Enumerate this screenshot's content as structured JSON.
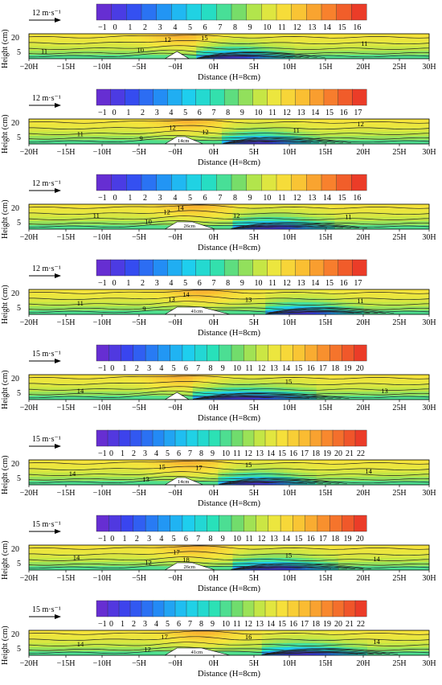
{
  "chart_data": [
    {
      "type": "heatmap",
      "panel": "a",
      "wind_speed_label": "12 m·s⁻¹",
      "colorbar_ticks": [
        "−1",
        "0",
        "1",
        "2",
        "3",
        "4",
        "5",
        "6",
        "7",
        "8",
        "9",
        "10",
        "11",
        "12",
        "13",
        "14",
        "15",
        "16"
      ],
      "scale_min": -1,
      "scale_max": 16,
      "x_ticks": [
        "−20H",
        "−15H",
        "−10H",
        "−5H",
        "−0H",
        "0H",
        "5H",
        "10H",
        "15H",
        "20H",
        "25H",
        "30H"
      ],
      "y_ticks": [
        "20",
        "5"
      ],
      "xlabel": "Distance (H=8cm)",
      "ylabel": "Height (cm)",
      "ridge_label": "",
      "gap_H": 0,
      "contour_labels": [
        {
          "text": "11",
          "x": -18.5,
          "y": 0.3
        },
        {
          "text": "10",
          "x": -6.5,
          "y": 0.35
        },
        {
          "text": "12",
          "x": -3.1,
          "y": 0.78
        },
        {
          "text": "15",
          "x": 1.5,
          "y": 0.84
        },
        {
          "text": "11",
          "x": 21.5,
          "y": 0.62
        }
      ],
      "isolines": [
        {
          "dir": "L",
          "H0": 9.5,
          "Hc": 7.5,
          "base": 0.85,
          "c": "#f8c534"
        },
        {
          "dir": "L",
          "H0": 9.5,
          "Hc": 7.5,
          "base": 0.55,
          "c": "#f0e044"
        },
        {
          "dir": "L",
          "H0": 9.5,
          "Hc": 7.5,
          "base": 0.32,
          "c": "#b7dc4a"
        },
        {
          "dir": "L",
          "H0": 9.5,
          "Hc": 7.5,
          "base": 0.12,
          "c": "#7fd06c"
        }
      ],
      "lee_blob": {
        "x0": 2.0,
        "x1": 9.0,
        "peak": 0.75
      }
    },
    {
      "type": "heatmap",
      "panel": "b",
      "wind_speed_label": "12 m·s⁻¹",
      "colorbar_ticks": [
        "−1",
        "0",
        "1",
        "2",
        "3",
        "4",
        "5",
        "6",
        "7",
        "8",
        "9",
        "10",
        "11",
        "12",
        "13",
        "14",
        "15",
        "16",
        "17"
      ],
      "scale_min": -1,
      "scale_max": 17,
      "x_ticks": [
        "−20H",
        "−15H",
        "−10H",
        "−5H",
        "−0H",
        "0H",
        "5H",
        "10H",
        "15H",
        "20H",
        "25H",
        "30H"
      ],
      "y_ticks": [
        "20",
        "5"
      ],
      "xlabel": "Distance (H=8cm)",
      "ylabel": "Height (cm)",
      "ridge_label": "14cm",
      "gap_H": 1.75,
      "contour_labels": [
        {
          "text": "11",
          "x": -14,
          "y": 0.4
        },
        {
          "text": "9",
          "x": -6.2,
          "y": 0.22
        },
        {
          "text": "12",
          "x": -2.5,
          "y": 0.66
        },
        {
          "text": "12",
          "x": 1.6,
          "y": 0.48
        },
        {
          "text": "11",
          "x": 13,
          "y": 0.55
        },
        {
          "text": "12",
          "x": 21,
          "y": 0.8
        }
      ],
      "isolines": [
        {
          "dir": "L",
          "H0": 9.5,
          "Hc": 7.5,
          "base": 0.85,
          "c": "#f8c534"
        },
        {
          "dir": "L",
          "H0": 9.5,
          "Hc": 7.5,
          "base": 0.55,
          "c": "#f0e044"
        },
        {
          "dir": "L",
          "H0": 9.5,
          "Hc": 7.5,
          "base": 0.32,
          "c": "#b7dc4a"
        },
        {
          "dir": "L",
          "H0": 9.5,
          "Hc": 7.5,
          "base": 0.12,
          "c": "#7fd06c"
        }
      ],
      "lee_blob": {
        "x0": 3.5,
        "x1": 10.5,
        "peak": 0.55
      }
    },
    {
      "type": "heatmap",
      "panel": "c",
      "wind_speed_label": "12 m·s⁻¹",
      "colorbar_ticks": [
        "−1",
        "0",
        "1",
        "2",
        "3",
        "4",
        "5",
        "6",
        "7",
        "8",
        "9",
        "10",
        "11",
        "12",
        "13",
        "14",
        "15",
        "16"
      ],
      "scale_min": -1,
      "scale_max": 16,
      "x_ticks": [
        "−20H",
        "−15H",
        "−10H",
        "−5H",
        "−0H",
        "0H",
        "5H",
        "10H",
        "15H",
        "20H",
        "25H",
        "30H"
      ],
      "y_ticks": [
        "20",
        "5"
      ],
      "xlabel": "Distance (H=8cm)",
      "ylabel": "Height (cm)",
      "ridge_label": "26cm",
      "gap_H": 3.25,
      "contour_labels": [
        {
          "text": "11",
          "x": -12,
          "y": 0.55
        },
        {
          "text": "10",
          "x": -5.5,
          "y": 0.3
        },
        {
          "text": "12",
          "x": -3.2,
          "y": 0.7
        },
        {
          "text": "14",
          "x": -1.5,
          "y": 0.86
        },
        {
          "text": "12",
          "x": 5.5,
          "y": 0.55
        },
        {
          "text": "11",
          "x": 19.5,
          "y": 0.5
        }
      ],
      "isolines": [
        {
          "dir": "L",
          "H0": 9.5,
          "Hc": 7.5,
          "base": 0.85,
          "c": "#f8c534"
        },
        {
          "dir": "L",
          "H0": 9.5,
          "Hc": 7.5,
          "base": 0.55,
          "c": "#f0e044"
        },
        {
          "dir": "L",
          "H0": 9.5,
          "Hc": 7.5,
          "base": 0.32,
          "c": "#b7dc4a"
        },
        {
          "dir": "L",
          "H0": 9.5,
          "Hc": 7.5,
          "base": 0.12,
          "c": "#7fd06c"
        }
      ],
      "lee_blob": {
        "x0": 3.0,
        "x1": 11.0,
        "peak": 0.8
      }
    },
    {
      "type": "heatmap",
      "panel": "d",
      "wind_speed_label": "12 m·s⁻¹",
      "colorbar_ticks": [
        "−1",
        "0",
        "1",
        "2",
        "3",
        "4",
        "5",
        "6",
        "7",
        "8",
        "9",
        "10",
        "11",
        "12",
        "13",
        "14",
        "15",
        "16",
        "17"
      ],
      "scale_min": -1,
      "scale_max": 17,
      "x_ticks": [
        "−20H",
        "−15H",
        "−10H",
        "−5H",
        "−0H",
        "0H",
        "5H",
        "10H",
        "15H",
        "20H",
        "25H",
        "30H"
      ],
      "y_ticks": [
        "20",
        "5"
      ],
      "xlabel": "Distance (H=8cm)",
      "ylabel": "Height (cm)",
      "ridge_label": "41cm",
      "gap_H": 5.1,
      "contour_labels": [
        {
          "text": "11",
          "x": -14,
          "y": 0.45
        },
        {
          "text": "9",
          "x": -5.8,
          "y": 0.22
        },
        {
          "text": "13",
          "x": -2.6,
          "y": 0.62
        },
        {
          "text": "14",
          "x": -0.8,
          "y": 0.8
        },
        {
          "text": "13",
          "x": 7,
          "y": 0.6
        },
        {
          "text": "11",
          "x": 21,
          "y": 0.55
        }
      ],
      "isolines": [
        {
          "dir": "L",
          "H0": 9.5,
          "Hc": 7.5,
          "base": 0.85,
          "c": "#f8c534"
        },
        {
          "dir": "L",
          "H0": 9.5,
          "Hc": 7.5,
          "base": 0.55,
          "c": "#f0e044"
        },
        {
          "dir": "L",
          "H0": 9.5,
          "Hc": 7.5,
          "base": 0.32,
          "c": "#b7dc4a"
        },
        {
          "dir": "L",
          "H0": 9.5,
          "Hc": 7.5,
          "base": 0.12,
          "c": "#7fd06c"
        }
      ],
      "lee_blob": {
        "x0": 5.5,
        "x1": 12.5,
        "peak": 0.55
      }
    },
    {
      "type": "heatmap",
      "panel": "e",
      "wind_speed_label": "15 m·s⁻¹",
      "colorbar_ticks": [
        "−1",
        "0",
        "1",
        "2",
        "3",
        "4",
        "5",
        "6",
        "7",
        "8",
        "9",
        "10",
        "11",
        "12",
        "13",
        "14",
        "15",
        "16",
        "17",
        "18",
        "19",
        "20"
      ],
      "scale_min": -1,
      "scale_max": 20,
      "x_ticks": [
        "−20H",
        "−15H",
        "−10H",
        "−5H",
        "−0H",
        "0H",
        "5H",
        "10H",
        "15H",
        "20H",
        "25H",
        "30H"
      ],
      "y_ticks": [
        "20",
        "5"
      ],
      "xlabel": "Distance (H=8cm)",
      "ylabel": "Height (cm)",
      "ridge_label": "",
      "gap_H": 0,
      "contour_labels": [
        {
          "text": "14",
          "x": -14,
          "y": 0.35
        },
        {
          "text": "15",
          "x": 12,
          "y": 0.72
        },
        {
          "text": "13",
          "x": 24,
          "y": 0.35
        }
      ],
      "isolines": [
        {
          "dir": "L",
          "H0": 9.5,
          "Hc": 7.5,
          "base": 0.85,
          "c": "#f8c534"
        },
        {
          "dir": "L",
          "H0": 9.5,
          "Hc": 7.5,
          "base": 0.55,
          "c": "#f0e044"
        },
        {
          "dir": "L",
          "H0": 9.5,
          "Hc": 7.5,
          "base": 0.32,
          "c": "#b7dc4a"
        },
        {
          "dir": "L",
          "H0": 9.5,
          "Hc": 7.5,
          "base": 0.12,
          "c": "#7fd06c"
        }
      ],
      "lee_blob": {
        "x0": 1.5,
        "x1": 12.0,
        "peak": 0.85
      }
    },
    {
      "type": "heatmap",
      "panel": "f",
      "wind_speed_label": "15 m·s⁻¹",
      "colorbar_ticks": [
        "−1",
        "0",
        "1",
        "2",
        "3",
        "4",
        "5",
        "6",
        "7",
        "8",
        "9",
        "10",
        "11",
        "12",
        "13",
        "14",
        "15",
        "16",
        "17",
        "18",
        "19",
        "20",
        "21",
        "22"
      ],
      "scale_min": -1,
      "scale_max": 22,
      "x_ticks": [
        "−20H",
        "−15H",
        "−10H",
        "−5H",
        "−0H",
        "0H",
        "5H",
        "10H",
        "15H",
        "20H",
        "25H",
        "30H"
      ],
      "y_ticks": [
        "20",
        "5"
      ],
      "xlabel": "Distance (H=8cm)",
      "ylabel": "Height (cm)",
      "ridge_label": "14cm",
      "gap_H": 1.75,
      "contour_labels": [
        {
          "text": "14",
          "x": -15,
          "y": 0.45
        },
        {
          "text": "13",
          "x": -5.8,
          "y": 0.22
        },
        {
          "text": "15",
          "x": -3.8,
          "y": 0.72
        },
        {
          "text": "17",
          "x": 0.8,
          "y": 0.7
        },
        {
          "text": "15",
          "x": 7,
          "y": 0.8
        },
        {
          "text": "14",
          "x": 22,
          "y": 0.55
        }
      ],
      "isolines": [
        {
          "dir": "L",
          "H0": 9.5,
          "Hc": 7.5,
          "base": 0.85,
          "c": "#f8c534"
        },
        {
          "dir": "L",
          "H0": 9.5,
          "Hc": 7.5,
          "base": 0.55,
          "c": "#f0e044"
        },
        {
          "dir": "L",
          "H0": 9.5,
          "Hc": 7.5,
          "base": 0.32,
          "c": "#b7dc4a"
        },
        {
          "dir": "L",
          "H0": 9.5,
          "Hc": 7.5,
          "base": 0.12,
          "c": "#7fd06c"
        }
      ],
      "lee_blob": {
        "x0": 3.0,
        "x1": 10.0,
        "peak": 0.6
      }
    },
    {
      "type": "heatmap",
      "panel": "g",
      "wind_speed_label": "15 m·s⁻¹",
      "colorbar_ticks": [
        "−1",
        "0",
        "1",
        "2",
        "3",
        "4",
        "5",
        "6",
        "7",
        "8",
        "9",
        "10",
        "11",
        "12",
        "13",
        "14",
        "15",
        "16",
        "17",
        "18",
        "19",
        "20"
      ],
      "scale_min": -1,
      "scale_max": 20,
      "x_ticks": [
        "−20H",
        "−15H",
        "−10H",
        "−5H",
        "−0H",
        "0H",
        "5H",
        "10H",
        "15H",
        "20H",
        "25H",
        "30H"
      ],
      "y_ticks": [
        "20",
        "5"
      ],
      "xlabel": "Distance (H=8cm)",
      "ylabel": "Height (cm)",
      "ridge_label": "26cm",
      "gap_H": 3.25,
      "contour_labels": [
        {
          "text": "14",
          "x": -14.5,
          "y": 0.5
        },
        {
          "text": "12",
          "x": -5.5,
          "y": 0.3
        },
        {
          "text": "17",
          "x": -2,
          "y": 0.72
        },
        {
          "text": "18",
          "x": -0.8,
          "y": 0.42
        },
        {
          "text": "15",
          "x": 12,
          "y": 0.6
        },
        {
          "text": "14",
          "x": 23,
          "y": 0.45
        }
      ],
      "isolines": [
        {
          "dir": "L",
          "H0": 9.5,
          "Hc": 7.5,
          "base": 0.85,
          "c": "#f8c534"
        },
        {
          "dir": "L",
          "H0": 9.5,
          "Hc": 7.5,
          "base": 0.55,
          "c": "#f0e044"
        },
        {
          "dir": "L",
          "H0": 9.5,
          "Hc": 7.5,
          "base": 0.32,
          "c": "#b7dc4a"
        },
        {
          "dir": "L",
          "H0": 9.5,
          "Hc": 7.5,
          "base": 0.12,
          "c": "#7fd06c"
        }
      ],
      "lee_blob": {
        "x0": 3.0,
        "x1": 11.5,
        "peak": 0.7
      }
    },
    {
      "type": "heatmap",
      "panel": "h",
      "wind_speed_label": "15 m·s⁻¹",
      "colorbar_ticks": [
        "−1",
        "0",
        "1",
        "2",
        "3",
        "4",
        "5",
        "6",
        "7",
        "8",
        "9",
        "10",
        "11",
        "12",
        "13",
        "14",
        "15",
        "16",
        "17",
        "18",
        "19",
        "20",
        "21",
        "22"
      ],
      "scale_min": -1,
      "scale_max": 22,
      "x_ticks": [
        "−20H",
        "−15H",
        "−10H",
        "−5H",
        "−0H",
        "0H",
        "5H",
        "10H",
        "15H",
        "20H",
        "25H",
        "30H"
      ],
      "y_ticks": [
        "20",
        "5"
      ],
      "xlabel": "Distance (H=8cm)",
      "ylabel": "Height (cm)",
      "ridge_label": "41cm",
      "gap_H": 5.1,
      "contour_labels": [
        {
          "text": "14",
          "x": -14,
          "y": 0.45
        },
        {
          "text": "12",
          "x": -5.6,
          "y": 0.25
        },
        {
          "text": "17",
          "x": -3.5,
          "y": 0.75
        },
        {
          "text": "16",
          "x": 7,
          "y": 0.75
        },
        {
          "text": "14",
          "x": 23,
          "y": 0.55
        }
      ],
      "isolines": [
        {
          "dir": "L",
          "H0": 9.5,
          "Hc": 7.5,
          "base": 0.85,
          "c": "#f8c534"
        },
        {
          "dir": "L",
          "H0": 9.5,
          "Hc": 7.5,
          "base": 0.55,
          "c": "#f0e044"
        },
        {
          "dir": "L",
          "H0": 9.5,
          "Hc": 7.5,
          "base": 0.32,
          "c": "#b7dc4a"
        },
        {
          "dir": "L",
          "H0": 9.5,
          "Hc": 7.5,
          "base": 0.12,
          "c": "#7fd06c"
        }
      ],
      "lee_blob": {
        "x0": 5.0,
        "x1": 13.0,
        "peak": 0.55
      }
    }
  ]
}
